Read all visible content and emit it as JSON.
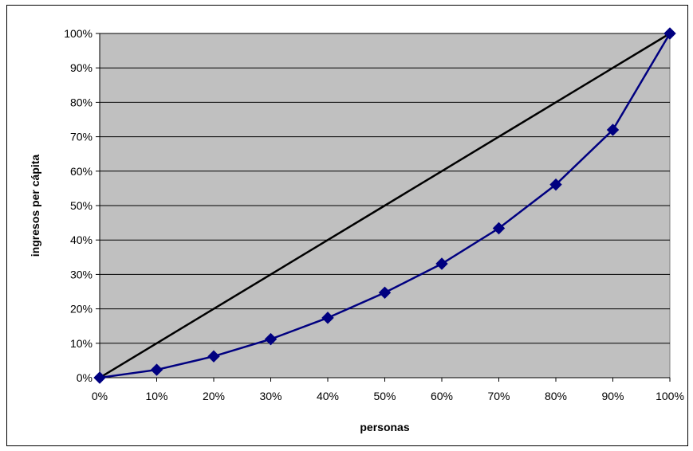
{
  "chart_data": {
    "type": "line",
    "title": "",
    "xlabel": "personas",
    "ylabel": "ingresos per cápita",
    "x": [
      0,
      10,
      20,
      30,
      40,
      50,
      60,
      70,
      80,
      90,
      100
    ],
    "xlim": [
      0,
      100
    ],
    "ylim": [
      0,
      100
    ],
    "x_tick_labels": [
      "0%",
      "10%",
      "20%",
      "30%",
      "40%",
      "50%",
      "60%",
      "70%",
      "80%",
      "90%",
      "100%"
    ],
    "y_tick_labels": [
      "0%",
      "10%",
      "20%",
      "30%",
      "40%",
      "50%",
      "60%",
      "70%",
      "80%",
      "90%",
      "100%"
    ],
    "grid": "horizontal",
    "legend": "none",
    "series": [
      {
        "role": "equality-line",
        "values": [
          0,
          10,
          20,
          30,
          40,
          50,
          60,
          70,
          80,
          90,
          100
        ],
        "marker": "none"
      },
      {
        "role": "lorenz-curve",
        "values": [
          0,
          2.3,
          6.2,
          11.2,
          17.4,
          24.7,
          33.1,
          43.4,
          56.1,
          72.0,
          100
        ],
        "marker": "diamond"
      }
    ],
    "colors": {
      "plot_background": "#c0c0c0",
      "gridline": "#000000",
      "equality_line": "#000000",
      "lorenz_curve": "#000080"
    }
  }
}
